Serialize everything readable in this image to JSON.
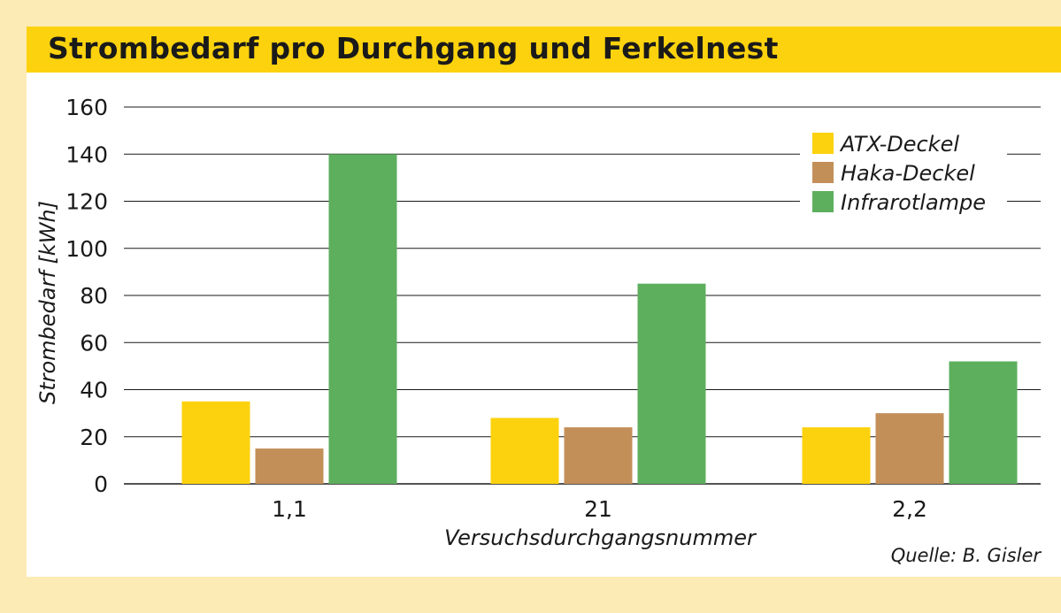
{
  "chart_data": {
    "type": "bar",
    "title": "Strombedarf pro Durchgang und Ferkelnest",
    "xlabel": "Versuchsdurchgangsnummer",
    "ylabel": "Strombedarf [kWh]",
    "ylim": [
      0,
      160
    ],
    "yticks": [
      0,
      20,
      40,
      60,
      80,
      100,
      120,
      140,
      160
    ],
    "categories": [
      "1,1",
      "21",
      "2,2"
    ],
    "series": [
      {
        "name": "ATX-Deckel",
        "color": "#fcd20e",
        "values": [
          35,
          28,
          24
        ]
      },
      {
        "name": "Haka-Deckel",
        "color": "#c38f59",
        "values": [
          15,
          24,
          30
        ]
      },
      {
        "name": "Infrarotlampe",
        "color": "#5daf5e",
        "values": [
          140,
          85,
          52
        ]
      }
    ],
    "grid": true,
    "legend_position": "top-right",
    "source": "Quelle: B. Gisler"
  }
}
